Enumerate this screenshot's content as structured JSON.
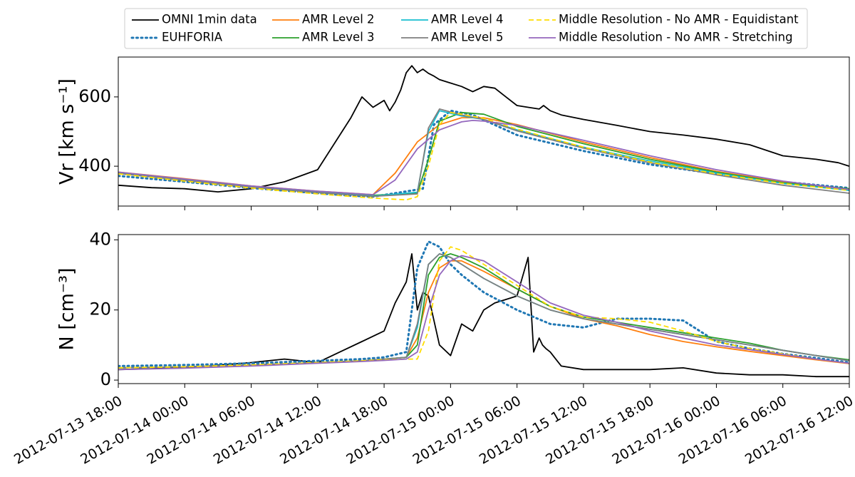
{
  "chart_data": [
    {
      "type": "line",
      "ylabel": "Vr [km s⁻¹]",
      "xlim": [
        "2012-07-13 18:00",
        "2012-07-16 12:00"
      ],
      "ylim": [
        285,
        715
      ],
      "yticks": [
        400,
        600
      ],
      "x_ticks": [
        "2012-07-13 18:00",
        "2012-07-14 00:00",
        "2012-07-14 06:00",
        "2012-07-14 12:00",
        "2012-07-14 18:00",
        "2012-07-15 00:00",
        "2012-07-15 06:00",
        "2012-07-15 12:00",
        "2012-07-15 18:00",
        "2012-07-16 00:00",
        "2012-07-16 06:00",
        "2012-07-16 12:00"
      ],
      "series": [
        {
          "name": "OMNI 1min data",
          "color": "#000000",
          "style": "solid",
          "x": [
            0,
            3,
            6,
            9,
            12,
            15,
            18,
            21,
            22,
            23,
            24,
            24.5,
            25,
            25.5,
            26,
            26.5,
            27,
            27.5,
            28,
            28.5,
            29,
            30,
            31,
            32,
            33,
            34,
            35,
            36,
            37,
            38,
            38.4,
            39,
            40,
            42,
            45,
            48,
            51,
            54,
            57,
            60,
            63,
            65,
            66
          ],
          "y": [
            345,
            338,
            335,
            326,
            335,
            355,
            390,
            540,
            600,
            570,
            590,
            560,
            585,
            620,
            670,
            690,
            670,
            680,
            668,
            660,
            650,
            640,
            630,
            615,
            630,
            625,
            600,
            575,
            570,
            565,
            575,
            560,
            548,
            535,
            518,
            500,
            490,
            478,
            462,
            430,
            420,
            410,
            400
          ]
        },
        {
          "name": "EUHFORIA",
          "color": "#1f77b4",
          "style": "dotted",
          "x": [
            0,
            6,
            12,
            18,
            21,
            23,
            27.5,
            28.5,
            30,
            32,
            36,
            42,
            48,
            54,
            60,
            66
          ],
          "y": [
            372,
            355,
            337,
            322,
            315,
            312,
            335,
            520,
            560,
            548,
            490,
            444,
            405,
            378,
            355,
            337
          ]
        },
        {
          "name": "AMR Level 2",
          "color": "#ff7f0e",
          "style": "solid",
          "x": [
            0,
            6,
            12,
            18,
            23,
            25,
            27,
            29,
            31,
            33,
            36,
            42,
            48,
            54,
            60,
            66
          ],
          "y": [
            383,
            364,
            343,
            328,
            318,
            380,
            470,
            520,
            540,
            540,
            520,
            470,
            425,
            385,
            355,
            332
          ]
        },
        {
          "name": "AMR Level 3",
          "color": "#2ca02c",
          "style": "solid",
          "x": [
            0,
            6,
            12,
            18,
            23,
            27,
            28,
            29,
            31,
            33,
            36,
            42,
            48,
            54,
            60,
            66
          ],
          "y": [
            381,
            361,
            341,
            326,
            316,
            322,
            420,
            530,
            555,
            550,
            515,
            465,
            420,
            383,
            352,
            335
          ]
        },
        {
          "name": "AMR Level 4",
          "color": "#17becf",
          "style": "solid",
          "x": [
            0,
            6,
            12,
            18,
            23,
            27,
            28,
            29,
            31,
            33,
            36,
            42,
            48,
            54,
            60,
            66
          ],
          "y": [
            380,
            360,
            340,
            325,
            314,
            325,
            500,
            560,
            545,
            535,
            505,
            455,
            415,
            380,
            350,
            330
          ]
        },
        {
          "name": "AMR Level 5",
          "color": "#7f7f7f",
          "style": "solid",
          "x": [
            0,
            6,
            12,
            18,
            23,
            27,
            28,
            29,
            31,
            33,
            36,
            42,
            48,
            54,
            60,
            66
          ],
          "y": [
            379,
            359,
            339,
            324,
            313,
            320,
            510,
            565,
            548,
            535,
            502,
            452,
            410,
            375,
            345,
            322
          ]
        },
        {
          "name": "Middle Resolution - No AMR - Equidistant",
          "color": "#ffdd00",
          "style": "dashed",
          "x": [
            0,
            6,
            12,
            18,
            23,
            26,
            27,
            28,
            29,
            30,
            31,
            33,
            36,
            42,
            48,
            54,
            60,
            66
          ],
          "y": [
            378,
            357,
            337,
            320,
            308,
            303,
            312,
            400,
            520,
            555,
            550,
            538,
            507,
            455,
            412,
            378,
            350,
            330
          ]
        },
        {
          "name": "Middle Resolution - No AMR - Stretching",
          "color": "#9467bd",
          "style": "solid",
          "x": [
            0,
            6,
            12,
            18,
            23,
            25,
            27,
            29,
            31,
            32,
            33,
            36,
            42,
            48,
            54,
            60,
            66
          ],
          "y": [
            383,
            363,
            343,
            328,
            318,
            360,
            450,
            505,
            528,
            532,
            530,
            518,
            475,
            430,
            390,
            357,
            333
          ]
        }
      ]
    },
    {
      "type": "line",
      "ylabel": "N [cm⁻³]",
      "xlim": [
        "2012-07-13 18:00",
        "2012-07-16 12:00"
      ],
      "ylim": [
        -1,
        41.5
      ],
      "yticks": [
        0,
        20,
        40
      ],
      "x_ticks": [
        "2012-07-13 18:00",
        "2012-07-14 00:00",
        "2012-07-14 06:00",
        "2012-07-14 12:00",
        "2012-07-14 18:00",
        "2012-07-15 00:00",
        "2012-07-15 06:00",
        "2012-07-15 12:00",
        "2012-07-15 18:00",
        "2012-07-16 00:00",
        "2012-07-16 06:00",
        "2012-07-16 12:00"
      ],
      "series": [
        {
          "name": "OMNI 1min data",
          "color": "#000000",
          "style": "solid",
          "x": [
            0,
            6,
            12,
            15,
            18,
            20,
            22,
            24,
            25,
            26,
            26.5,
            27,
            27.5,
            28,
            29,
            30,
            31,
            32,
            33,
            34,
            35,
            36,
            37,
            37.5,
            38,
            38.3,
            38.6,
            39,
            39.5,
            40,
            42,
            45,
            48,
            51,
            54,
            57,
            60,
            63,
            66
          ],
          "y": [
            3,
            3.5,
            5,
            6,
            5,
            8,
            11,
            14,
            22,
            28,
            36,
            20,
            25,
            24,
            10,
            7,
            16,
            14,
            20,
            22,
            23,
            24,
            35,
            8,
            12,
            10,
            9,
            8,
            6,
            4,
            3,
            3,
            3,
            3.5,
            2,
            1.5,
            1.5,
            1,
            1
          ]
        },
        {
          "name": "EUHFORIA",
          "color": "#1f77b4",
          "style": "dotted",
          "x": [
            0,
            6,
            12,
            18,
            22,
            24,
            26,
            27,
            28,
            29,
            30,
            31,
            33,
            36,
            39,
            42,
            45,
            48,
            51,
            54,
            57,
            60,
            63,
            66
          ],
          "y": [
            4,
            4.3,
            4.8,
            5.5,
            6,
            6.5,
            8,
            32,
            39.5,
            38,
            33,
            30,
            25,
            20,
            16,
            15,
            17.5,
            17.5,
            17,
            11,
            9,
            7.5,
            6.3,
            5
          ]
        },
        {
          "name": "AMR Level 2",
          "color": "#ff7f0e",
          "style": "solid",
          "x": [
            0,
            6,
            12,
            18,
            22,
            24,
            26,
            27,
            28,
            29,
            30,
            31,
            33,
            36,
            39,
            42,
            45,
            48,
            51,
            54,
            57,
            60,
            63,
            66
          ],
          "y": [
            3.5,
            3.8,
            4.3,
            5,
            5.5,
            6,
            6.5,
            12,
            25,
            32,
            34,
            34,
            31,
            26,
            21,
            17.5,
            15.5,
            13,
            11,
            9.5,
            8.2,
            7,
            5.8,
            4.7
          ]
        },
        {
          "name": "AMR Level 3",
          "color": "#2ca02c",
          "style": "solid",
          "x": [
            0,
            6,
            12,
            18,
            22,
            24,
            26,
            27,
            28,
            29,
            30,
            31,
            33,
            36,
            39,
            42,
            45,
            48,
            51,
            54,
            57,
            60,
            63,
            66
          ],
          "y": [
            3.5,
            3.8,
            4.3,
            5,
            5.5,
            6,
            6.5,
            10,
            30,
            35,
            36,
            35,
            32,
            26,
            21,
            18,
            16.5,
            15,
            13.5,
            12,
            10.5,
            8.5,
            7,
            5.8
          ]
        },
        {
          "name": "AMR Level 4",
          "color": "#17becf",
          "style": "solid",
          "x": [
            0,
            6,
            12,
            18,
            22,
            24,
            26,
            27,
            28,
            29,
            30,
            31,
            33,
            36,
            39,
            42,
            45,
            48,
            51,
            54,
            57,
            60,
            63,
            66
          ],
          "y": [
            3.5,
            3.8,
            4.3,
            5,
            5.5,
            6,
            6.5,
            15,
            33,
            36,
            35,
            33,
            29,
            24,
            20,
            17.5,
            16,
            14.5,
            13,
            11.5,
            10,
            8.5,
            7,
            5.5
          ]
        },
        {
          "name": "AMR Level 5",
          "color": "#7f7f7f",
          "style": "solid",
          "x": [
            0,
            6,
            12,
            18,
            22,
            24,
            26,
            27,
            28,
            29,
            30,
            31,
            33,
            36,
            39,
            42,
            45,
            48,
            51,
            54,
            57,
            60,
            63,
            66
          ],
          "y": [
            3.5,
            3.8,
            4.3,
            5,
            5.5,
            6,
            6.5,
            16,
            33,
            36,
            35,
            33,
            29,
            24,
            20,
            17.5,
            16,
            14.5,
            13,
            11.5,
            10,
            8.5,
            7,
            5.5
          ]
        },
        {
          "name": "Middle Resolution - No AMR - Equidistant",
          "color": "#ffdd00",
          "style": "dashed",
          "x": [
            0,
            6,
            12,
            18,
            22,
            24,
            26,
            27,
            28,
            29,
            30,
            31,
            33,
            36,
            39,
            42,
            45,
            48,
            51,
            54,
            57,
            60,
            63,
            66
          ],
          "y": [
            3.5,
            3.8,
            4.3,
            5,
            5.5,
            5.8,
            6,
            6,
            14,
            34,
            38,
            37,
            33,
            27,
            21,
            18,
            17.5,
            16.5,
            14,
            11,
            9,
            7.5,
            6,
            4.8
          ]
        },
        {
          "name": "Middle Resolution - No AMR - Stretching",
          "color": "#9467bd",
          "style": "solid",
          "x": [
            0,
            6,
            12,
            18,
            22,
            24,
            26,
            27,
            28,
            29,
            30,
            31,
            33,
            36,
            39,
            42,
            45,
            48,
            51,
            54,
            57,
            60,
            63,
            66
          ],
          "y": [
            3,
            3.4,
            4,
            4.8,
            5.3,
            5.6,
            6,
            8,
            20,
            30,
            34,
            35.5,
            34,
            28,
            22,
            18.5,
            16.5,
            14,
            12,
            10,
            8.7,
            7.3,
            6,
            4.8
          ]
        }
      ]
    }
  ]
}
